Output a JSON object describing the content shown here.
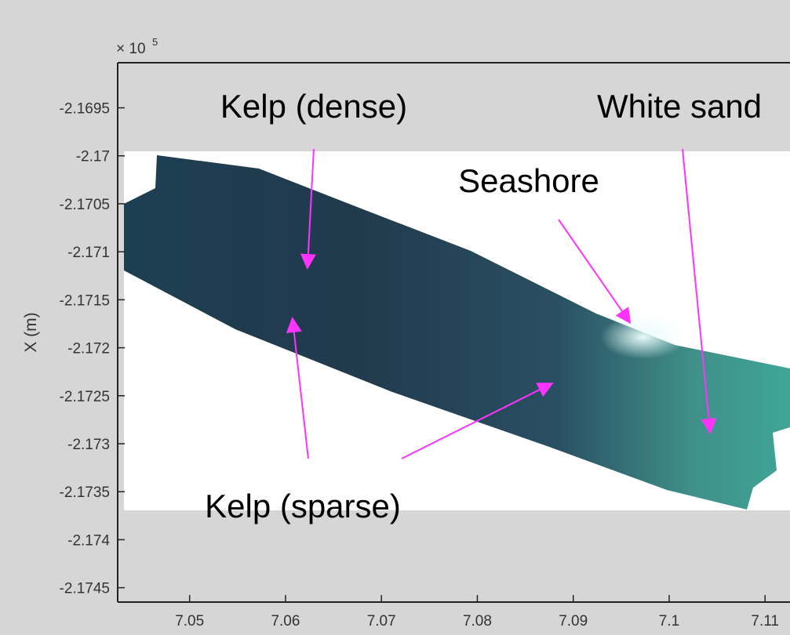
{
  "chart_data": {
    "type": "image",
    "y_exponent": {
      "base": "× 10",
      "exponent": "5"
    },
    "ylabel": "X  (m)",
    "ylim": [
      -2.17465,
      -2.16903
    ],
    "yticks": [
      -2.1695,
      -2.17,
      -2.1705,
      -2.171,
      -2.1715,
      -2.172,
      -2.1725,
      -2.173,
      -2.1735,
      -2.174,
      -2.1745
    ],
    "xlim": [
      7.0425,
      7.1126
    ],
    "xticks": [
      7.05,
      7.06,
      7.07,
      7.08,
      7.09,
      7.1,
      7.11
    ],
    "annotations": [
      "Kelp (dense)",
      "White sand",
      "Seashore",
      "Kelp (sparse)"
    ]
  }
}
